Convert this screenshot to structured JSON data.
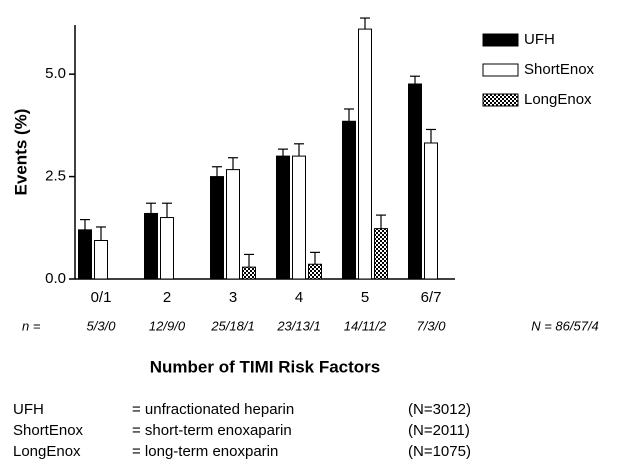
{
  "chart_data": {
    "type": "bar",
    "y_label": "Events (%)",
    "x_label": "Number of TIMI Risk Factors",
    "categories": [
      "0/1",
      "2",
      "3",
      "4",
      "5",
      "6/7"
    ],
    "series": [
      {
        "name": "UFH",
        "color": "#000000",
        "values": [
          1.2,
          1.6,
          2.5,
          3.0,
          3.85,
          4.76
        ],
        "errors": [
          0.25,
          0.25,
          0.24,
          0.17,
          0.3,
          0.19
        ]
      },
      {
        "name": "ShortEnox",
        "color": "#ffffff",
        "values": [
          0.94,
          1.5,
          2.67,
          3.0,
          6.1,
          3.32
        ],
        "errors": [
          0.33,
          0.35,
          0.29,
          0.3,
          0.27,
          0.33
        ]
      },
      {
        "name": "LongEnox",
        "color": "#888888",
        "pattern": "checker",
        "values": [
          null,
          null,
          0.29,
          0.36,
          1.23,
          null
        ],
        "errors": [
          null,
          null,
          0.31,
          0.29,
          0.33,
          null
        ]
      }
    ],
    "ylim": [
      0,
      6.2
    ],
    "yticks": [
      {
        "value": 0,
        "label": "0.0"
      },
      2.5,
      {
        "value": 5,
        "label": "5.0"
      }
    ],
    "legend": "top-right",
    "n_label": "n =",
    "n_values": [
      "5/3/0",
      "12/9/0",
      "25/18/1",
      "23/13/1",
      "14/11/2",
      "7/3/0"
    ],
    "total_label": "N = 86/57/4"
  },
  "definitions": [
    [
      "UFH",
      "= unfractionated heparin",
      "(N=3012)"
    ],
    [
      "ShortEnox",
      "= short-term enoxaparin",
      "(N=2011)"
    ],
    [
      "LongEnox",
      "= long-term enoxparin",
      "(N=1075)"
    ]
  ]
}
